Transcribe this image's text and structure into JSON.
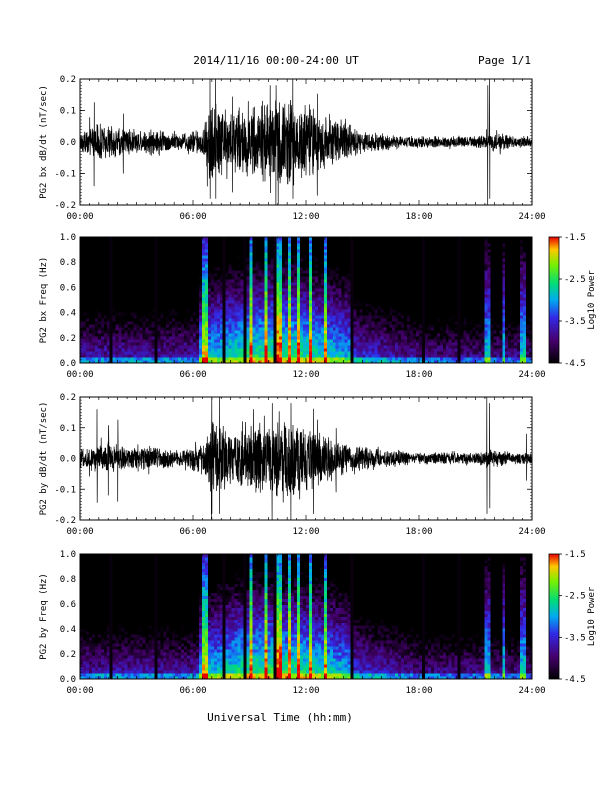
{
  "header": {
    "title": "2014/11/16  00:00-24:00 UT",
    "page": "Page 1/1"
  },
  "chart_data": [
    {
      "type": "line",
      "id": "bx-dbdt",
      "ylabel": "PG2 bx dB/dt (nT/sec)",
      "ylim": [
        -0.2,
        0.2
      ],
      "yticks": [
        "0.2",
        "0.1",
        "0.0",
        "-0.1",
        "-0.2"
      ],
      "xlim": [
        0,
        24
      ],
      "xticks": [
        "00:00",
        "06:00",
        "12:00",
        "18:00",
        "24:00"
      ],
      "envelope": {
        "hours": [
          0,
          0.5,
          1,
          1.5,
          2,
          2.5,
          3,
          3.5,
          4,
          4.5,
          5,
          5.5,
          6,
          6.5,
          7,
          7.5,
          8,
          8.5,
          9,
          9.5,
          10,
          10.5,
          11,
          11.5,
          12,
          12.5,
          13,
          13.5,
          14,
          14.5,
          15,
          15.5,
          16,
          16.5,
          17,
          17.5,
          18,
          18.5,
          19,
          19.5,
          20,
          20.5,
          21,
          21.5,
          22,
          22.5,
          23,
          23.5,
          24
        ],
        "amplitude": [
          0.03,
          0.05,
          0.07,
          0.06,
          0.05,
          0.05,
          0.04,
          0.04,
          0.05,
          0.04,
          0.03,
          0.03,
          0.04,
          0.05,
          0.16,
          0.13,
          0.11,
          0.12,
          0.12,
          0.13,
          0.14,
          0.15,
          0.16,
          0.14,
          0.13,
          0.11,
          0.1,
          0.09,
          0.07,
          0.05,
          0.04,
          0.03,
          0.03,
          0.025,
          0.02,
          0.02,
          0.02,
          0.02,
          0.02,
          0.02,
          0.02,
          0.02,
          0.02,
          0.03,
          0.03,
          0.03,
          0.02,
          0.02,
          0.02
        ],
        "spikes": [
          [
            0.75,
            0.14
          ],
          [
            2.3,
            0.1
          ],
          [
            6.9,
            0.2
          ],
          [
            7.2,
            0.2
          ],
          [
            8.1,
            0.16
          ],
          [
            10.1,
            0.18
          ],
          [
            10.4,
            0.2
          ],
          [
            11.3,
            0.2
          ],
          [
            12.6,
            0.17
          ],
          [
            21.65,
            0.2
          ],
          [
            21.75,
            0.2
          ]
        ]
      }
    },
    {
      "type": "heatmap",
      "id": "bx-freq",
      "ylabel": "PG2 bx Freq (Hz)",
      "ylim": [
        0,
        1.0
      ],
      "yticks": [
        "1.0",
        "0.8",
        "0.6",
        "0.4",
        "0.2",
        "0.0"
      ],
      "xlim": [
        0,
        24
      ],
      "xticks": [
        "00:00",
        "06:00",
        "12:00",
        "18:00",
        "24:00"
      ],
      "colorbar": {
        "label": "Log10 Power",
        "range": [
          -4.5,
          -1.5
        ],
        "ticks": [
          "-1.5",
          "-2.5",
          "-3.5",
          "-4.5"
        ]
      },
      "gap_lines_hours": [
        1.7,
        4.0,
        7.6,
        8.8,
        10.3,
        14.5,
        18.2,
        20.2
      ],
      "bright_streaks_hours": [
        6.6,
        9.1,
        9.9,
        10.6,
        11.1,
        11.6,
        12.2,
        13.0,
        21.6,
        22.5,
        23.5
      ]
    },
    {
      "type": "line",
      "id": "by-dbdt",
      "ylabel": "PG2 by dB/dt (nT/sec)",
      "ylim": [
        -0.2,
        0.2
      ],
      "yticks": [
        "0.2",
        "0.1",
        "0.0",
        "-0.1",
        "-0.2"
      ],
      "xlim": [
        0,
        24
      ],
      "xticks": [
        "00:00",
        "06:00",
        "12:00",
        "18:00",
        "24:00"
      ],
      "envelope": {
        "hours": [
          0,
          0.5,
          1,
          1.5,
          2,
          2.5,
          3,
          3.5,
          4,
          4.5,
          5,
          5.5,
          6,
          6.5,
          7,
          7.5,
          8,
          8.5,
          9,
          9.5,
          10,
          10.5,
          11,
          11.5,
          12,
          12.5,
          13,
          13.5,
          14,
          14.5,
          15,
          15.5,
          16,
          16.5,
          17,
          17.5,
          18,
          18.5,
          19,
          19.5,
          20,
          20.5,
          21,
          21.5,
          22,
          22.5,
          23,
          23.5,
          24
        ],
        "amplitude": [
          0.03,
          0.04,
          0.05,
          0.06,
          0.05,
          0.04,
          0.04,
          0.04,
          0.04,
          0.04,
          0.03,
          0.03,
          0.04,
          0.06,
          0.14,
          0.12,
          0.1,
          0.1,
          0.11,
          0.12,
          0.13,
          0.14,
          0.15,
          0.13,
          0.12,
          0.1,
          0.09,
          0.08,
          0.06,
          0.05,
          0.04,
          0.04,
          0.03,
          0.03,
          0.03,
          0.02,
          0.02,
          0.02,
          0.02,
          0.02,
          0.02,
          0.02,
          0.02,
          0.03,
          0.03,
          0.03,
          0.02,
          0.02,
          0.02
        ],
        "spikes": [
          [
            0.9,
            0.16
          ],
          [
            1.5,
            0.12
          ],
          [
            2.0,
            0.14
          ],
          [
            7.0,
            0.2
          ],
          [
            7.4,
            0.2
          ],
          [
            10.2,
            0.2
          ],
          [
            11.2,
            0.2
          ],
          [
            12.4,
            0.18
          ],
          [
            13.6,
            0.11
          ],
          [
            21.6,
            0.2
          ],
          [
            21.75,
            0.18
          ],
          [
            23.7,
            0.08
          ]
        ]
      }
    },
    {
      "type": "heatmap",
      "id": "by-freq",
      "ylabel": "PG2 by Freq (Hz)",
      "ylim": [
        0,
        1.0
      ],
      "yticks": [
        "1.0",
        "0.8",
        "0.6",
        "0.4",
        "0.2",
        "0.0"
      ],
      "xlim": [
        0,
        24
      ],
      "xticks": [
        "00:00",
        "06:00",
        "12:00",
        "18:00",
        "24:00"
      ],
      "colorbar": {
        "label": "Log10 Power",
        "range": [
          -4.5,
          -1.5
        ],
        "ticks": [
          "-1.5",
          "-2.5",
          "-3.5",
          "-4.5"
        ]
      },
      "gap_lines_hours": [
        1.7,
        4.0,
        7.6,
        8.8,
        10.3,
        14.5,
        18.2,
        20.2
      ],
      "bright_streaks_hours": [
        6.6,
        9.1,
        9.9,
        10.6,
        11.1,
        11.6,
        12.2,
        13.0,
        21.6,
        22.5,
        23.5
      ]
    }
  ],
  "footer": {
    "xlabel": "Universal Time (hh:mm)"
  }
}
